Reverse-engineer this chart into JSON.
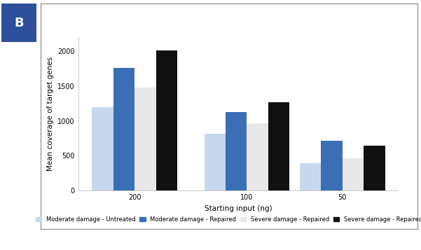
{
  "groups": [
    "200",
    "100",
    "50"
  ],
  "series": [
    {
      "label": "Moderate damage - Untreated",
      "color": "#c5d8ee",
      "values": [
        1200,
        820,
        390
      ]
    },
    {
      "label": "Moderate damage - Repaired",
      "color": "#3b6fb5",
      "values": [
        1760,
        1130,
        720
      ]
    },
    {
      "label": "Severe damage - Repaired",
      "color": "#e8e8e8",
      "values": [
        1480,
        965,
        460
      ]
    },
    {
      "label": "Severe damage - Repaired",
      "color": "#111111",
      "values": [
        2010,
        1270,
        645
      ]
    }
  ],
  "xlabel": "Starting input (ng)",
  "ylabel": "Mean coverage of target genes",
  "ylim": [
    0,
    2200
  ],
  "yticks": [
    0,
    500,
    1000,
    1500,
    2000
  ],
  "bar_width": 0.19,
  "label_B_text": "B",
  "label_B_bg": "#2e4f9a",
  "label_B_color": "#ffffff",
  "figure_bg": "#ffffff",
  "axes_bg": "#ffffff",
  "axis_fontsize": 7.5,
  "tick_fontsize": 7,
  "legend_fontsize": 6,
  "spine_color": "#cccccc",
  "border_color": "#888888"
}
